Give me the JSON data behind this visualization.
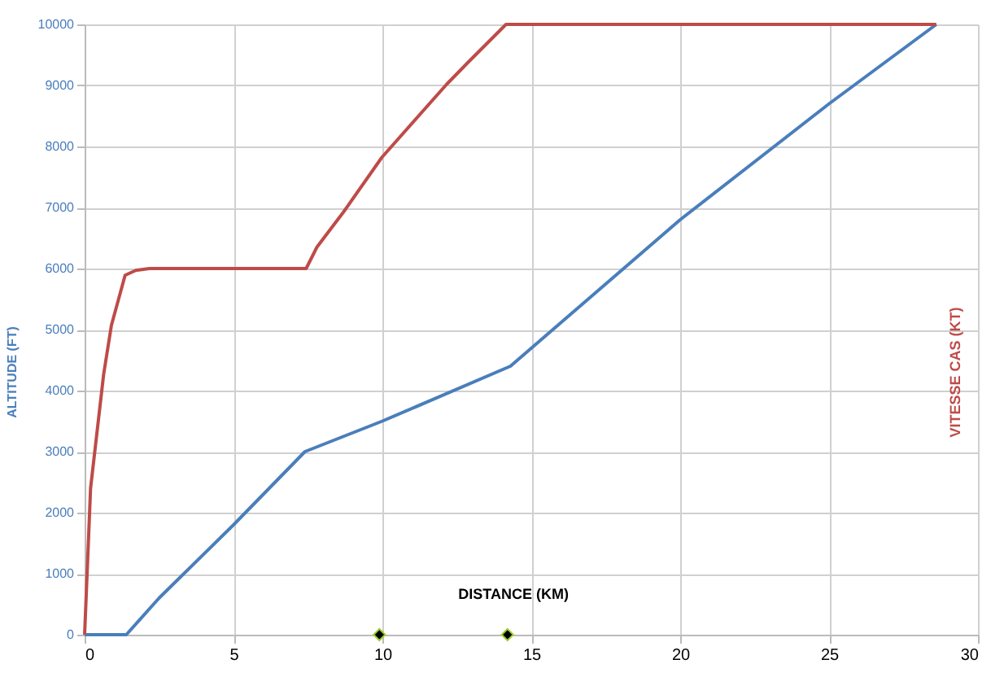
{
  "chart_data": {
    "type": "line",
    "xlabel": "DISTANCE (KM)",
    "ylabel": "ALTITUDE (FT)",
    "y2label": "VITESSE CAS (KT)",
    "xlim": [
      0,
      30
    ],
    "xticks": [
      0,
      5,
      10,
      15,
      20,
      25,
      30
    ],
    "ylim": [
      0,
      10000
    ],
    "yticks": [
      0,
      1000,
      2000,
      3000,
      4000,
      5000,
      6000,
      7000,
      8000,
      9000,
      10000
    ],
    "grid": true,
    "marker": "none",
    "line_style": "solid",
    "series": [
      {
        "color": "#4a7ebb",
        "x": [
          0,
          1.4,
          2.5,
          5,
          7.4,
          10,
          14.3,
          20,
          25,
          28.6
        ],
        "values": [
          0,
          0,
          600,
          1800,
          3000,
          3500,
          4400,
          6800,
          8700,
          10000
        ]
      },
      {
        "color": "#be4b48",
        "x": [
          0,
          0.2,
          0.64,
          0.9,
          1.36,
          1.72,
          2.18,
          7.44,
          7.8,
          8.7,
          9.98,
          12.16,
          12.88,
          14.15,
          28.6
        ],
        "values": [
          0,
          2400,
          4270,
          5070,
          5890,
          5970,
          6000,
          6000,
          6350,
          6930,
          7820,
          9020,
          9380,
          10000,
          10000
        ]
      },
      {
        "type": "scatter",
        "marker": "diamond",
        "color": "#000000",
        "x": [
          9.9,
          14.2
        ],
        "values": [
          0,
          0
        ]
      }
    ]
  }
}
